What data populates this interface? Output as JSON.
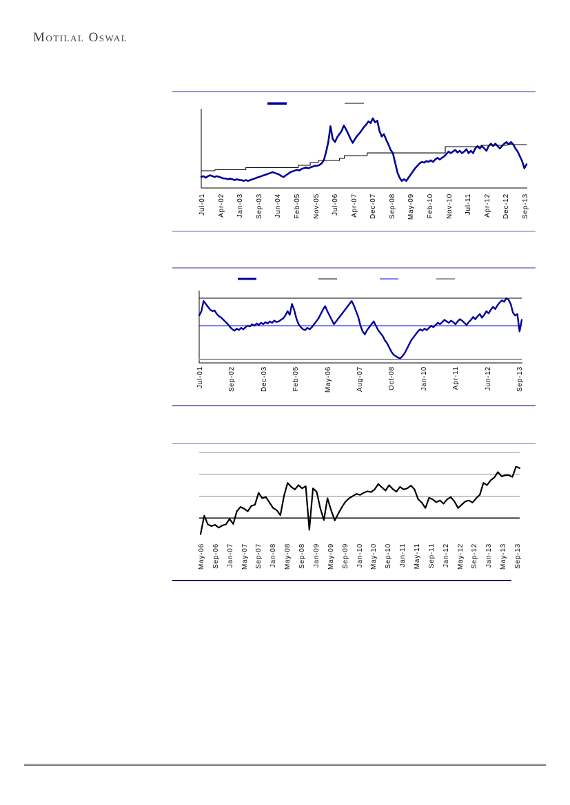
{
  "header": {
    "logo_text": "Motilal Oswal"
  },
  "colors": {
    "primary_line": "#00009b",
    "black_line": "#000000",
    "blue_line": "#0000ee",
    "gray_line": "#9a9a9a",
    "separator_purple": "#9c94c9",
    "separator_navy": "#1b1b70",
    "footer_rule": "#5e5e5e"
  },
  "chart_data": [
    {
      "type": "line",
      "title": "",
      "x_ticks": [
        "Jul-01",
        "Apr-02",
        "Jan-03",
        "Sep-03",
        "Jun-04",
        "Feb-05",
        "Nov-05",
        "Jul-06",
        "Apr-07",
        "Dec-07",
        "Sep-08",
        "May-09",
        "Feb-10",
        "Nov-10",
        "Jul-11",
        "Apr-12",
        "Dec-12",
        "Sep-13"
      ],
      "x_range": [
        "Jul-01",
        "Sep-13"
      ],
      "y_axis": "unlabeled",
      "y_range": [
        0,
        100
      ],
      "legend": [
        {
          "marker_color": "#00009b",
          "label": ""
        },
        {
          "marker_color": "#000000",
          "label": ""
        }
      ],
      "series": [
        {
          "name": "primary-series",
          "color": "#00009b",
          "values": [
            14,
            15,
            13,
            15,
            16,
            15,
            14,
            15,
            14,
            13,
            12,
            12,
            11,
            12,
            11,
            10,
            11,
            10,
            10,
            9,
            10,
            9,
            10,
            11,
            12,
            13,
            14,
            15,
            16,
            17,
            18,
            19,
            20,
            19,
            18,
            17,
            15,
            14,
            16,
            18,
            20,
            21,
            22,
            23,
            22,
            24,
            25,
            26,
            25,
            26,
            27,
            28,
            28,
            29,
            31,
            35,
            45,
            58,
            78,
            62,
            58,
            64,
            68,
            72,
            79,
            74,
            68,
            62,
            57,
            62,
            66,
            69,
            73,
            77,
            80,
            84,
            82,
            88,
            83,
            85,
            72,
            65,
            68,
            61,
            55,
            48,
            44,
            32,
            20,
            13,
            9,
            11,
            9,
            13,
            17,
            21,
            25,
            28,
            31,
            33,
            32,
            34,
            33,
            35,
            33,
            36,
            38,
            36,
            38,
            40,
            43,
            46,
            44,
            46,
            48,
            45,
            47,
            44,
            46,
            49,
            44,
            47,
            44,
            50,
            53,
            50,
            53,
            50,
            47,
            53,
            56,
            53,
            56,
            53,
            50,
            53,
            56,
            58,
            55,
            58,
            55,
            50,
            46,
            40,
            34,
            25,
            30
          ]
        },
        {
          "name": "stepped-average-series",
          "color": "#000000",
          "points": [
            [
              0,
              21.7
            ],
            [
              0.042,
              21.7
            ],
            [
              0.042,
              23
            ],
            [
              0.137,
              23
            ],
            [
              0.137,
              25.7
            ],
            [
              0.298,
              25.7
            ],
            [
              0.298,
              28.7
            ],
            [
              0.335,
              28.7
            ],
            [
              0.335,
              32.2
            ],
            [
              0.36,
              32.2
            ],
            [
              0.36,
              34.8
            ],
            [
              0.425,
              34.8
            ],
            [
              0.425,
              37.4
            ],
            [
              0.44,
              37.4
            ],
            [
              0.44,
              40.9
            ],
            [
              0.51,
              40.9
            ],
            [
              0.51,
              44.3
            ],
            [
              0.75,
              44.3
            ],
            [
              0.75,
              52.2
            ],
            [
              0.86,
              52.2
            ],
            [
              0.86,
              53.9
            ],
            [
              0.94,
              53.9
            ],
            [
              0.94,
              54.8
            ],
            [
              1,
              54.8
            ]
          ]
        }
      ]
    },
    {
      "type": "line",
      "title": "",
      "x_ticks": [
        "Jul-01",
        "Sep-02",
        "Dec-03",
        "Feb-05",
        "May-06",
        "Aug-07",
        "Oct-08",
        "Jan-10",
        "Apr-11",
        "Jun-12",
        "Sep-13"
      ],
      "x_range": [
        "Jul-01",
        "Sep-13"
      ],
      "y_axis": "unlabeled",
      "y_range": [
        0,
        100
      ],
      "legend": [
        {
          "marker_color": "#00009b",
          "label": ""
        },
        {
          "marker_color": "#000000",
          "label": ""
        },
        {
          "marker_color": "#0000ee",
          "label": ""
        },
        {
          "marker_color": "#9a9a9a",
          "label": ""
        }
      ],
      "ref_lines": [
        {
          "name": "upper-band",
          "color": "#000000",
          "value": 88
        },
        {
          "name": "mid-line",
          "color": "#0000ee",
          "value": 50
        },
        {
          "name": "lower-band",
          "color": "#9a9a9a",
          "value": 3.4
        }
      ],
      "series": [
        {
          "name": "primary-series",
          "color": "#00009b",
          "values": [
            64,
            70,
            84,
            80,
            76,
            72,
            70,
            71,
            66,
            63,
            61,
            58,
            55,
            52,
            48,
            45,
            43,
            46,
            44,
            47,
            45,
            48,
            50,
            49,
            52,
            50,
            53,
            51,
            54,
            52,
            55,
            53,
            56,
            54,
            57,
            55,
            56,
            58,
            60,
            64,
            70,
            65,
            80,
            72,
            60,
            52,
            48,
            45,
            44,
            47,
            45,
            48,
            52,
            56,
            60,
            66,
            72,
            77,
            70,
            64,
            58,
            52,
            56,
            60,
            64,
            68,
            72,
            76,
            80,
            84,
            78,
            70,
            62,
            50,
            42,
            38,
            44,
            48,
            52,
            56,
            50,
            44,
            40,
            36,
            30,
            26,
            20,
            14,
            10,
            8,
            6,
            5,
            8,
            12,
            18,
            24,
            30,
            34,
            38,
            42,
            45,
            43,
            46,
            44,
            47,
            50,
            48,
            51,
            54,
            52,
            55,
            58,
            56,
            54,
            57,
            55,
            52,
            56,
            59,
            57,
            54,
            51,
            55,
            58,
            62,
            59,
            63,
            66,
            61,
            65,
            70,
            67,
            72,
            76,
            73,
            78,
            82,
            85,
            83,
            88,
            86,
            80,
            68,
            64,
            66,
            42,
            58
          ]
        }
      ]
    },
    {
      "type": "line",
      "title": "",
      "x_ticks": [
        "May-06",
        "Sep-06",
        "Jan-07",
        "May-07",
        "Sep-07",
        "Jan-08",
        "May-08",
        "Sep-08",
        "Jan-09",
        "May-09",
        "Sep-09",
        "Jan-10",
        "May-10",
        "Sep-10",
        "Jan-11",
        "May-11",
        "Sep-11",
        "Jan-12",
        "May-12",
        "Sep-12",
        "Jan-13",
        "May-13",
        "Sep-13"
      ],
      "x_range": [
        "May-06",
        "Sep-13"
      ],
      "y_axis": "unlabeled",
      "y_range": [
        -1.05,
        3.05
      ],
      "gridlines": [
        1,
        2,
        3
      ],
      "baseline": 0,
      "legend": [],
      "series": [
        {
          "name": "primary-series",
          "color": "#000000",
          "values": [
            -0.75,
            0.1,
            -0.3,
            -0.38,
            -0.32,
            -0.45,
            -0.35,
            -0.3,
            -0.05,
            -0.28,
            0.3,
            0.5,
            0.42,
            0.3,
            0.55,
            0.6,
            1.15,
            0.9,
            0.95,
            0.7,
            0.45,
            0.35,
            0.12,
            1.0,
            1.6,
            1.42,
            1.3,
            1.5,
            1.35,
            1.45,
            -0.55,
            1.35,
            1.2,
            0.45,
            -0.1,
            0.9,
            0.35,
            -0.12,
            0.2,
            0.5,
            0.75,
            0.9,
            1.0,
            1.1,
            1.05,
            1.15,
            1.22,
            1.18,
            1.3,
            1.55,
            1.4,
            1.25,
            1.5,
            1.32,
            1.2,
            1.42,
            1.3,
            1.35,
            1.48,
            1.3,
            0.85,
            0.7,
            0.45,
            0.92,
            0.85,
            0.72,
            0.8,
            0.65,
            0.85,
            0.95,
            0.75,
            0.45,
            0.6,
            0.75,
            0.8,
            0.7,
            0.9,
            1.05,
            1.6,
            1.5,
            1.72,
            1.85,
            2.1,
            1.9,
            1.95,
            1.95,
            1.88,
            2.35,
            2.28
          ]
        }
      ]
    }
  ]
}
